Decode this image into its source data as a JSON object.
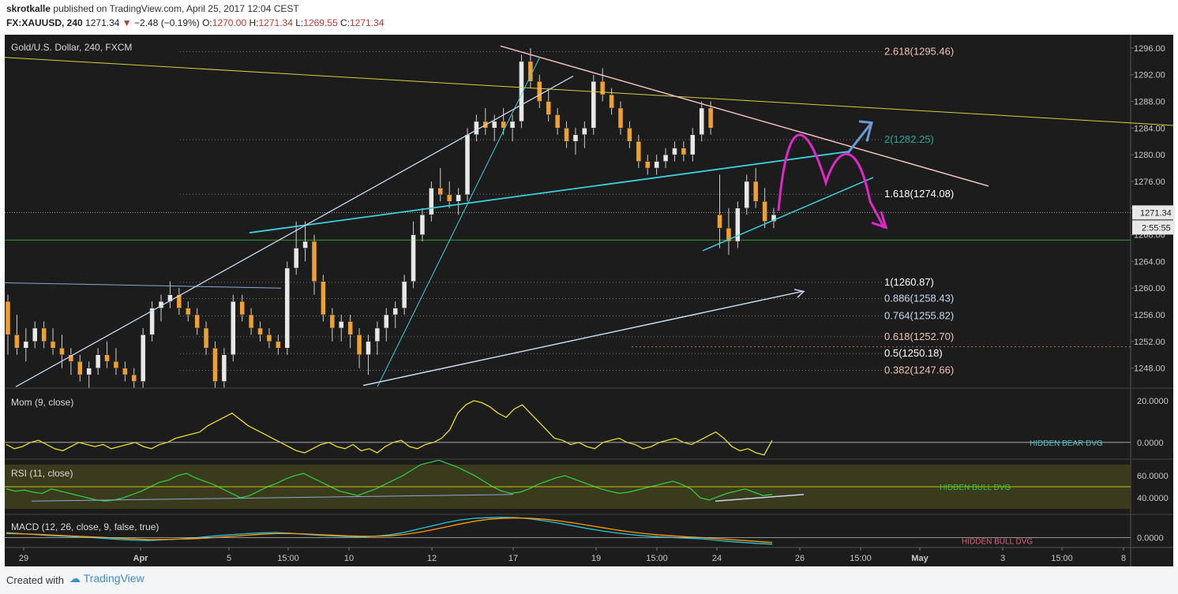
{
  "header": {
    "user": "skrotkalle",
    "published_text": "published on TradingView.com, April 25, 2017 12:04 CEST",
    "symbol_line": {
      "symbol": "FX:XAUUSD, 240",
      "last": "1271.34",
      "change": "−2.48 (−0.19%)",
      "open_label": "O:",
      "open": "1270.00",
      "high_label": "H:",
      "high": "1271.34",
      "low_label": "L:",
      "low": "1269.55",
      "close_label": "C:",
      "close": "1271.34"
    }
  },
  "footer": {
    "created_with": "Created with",
    "brand": "TradingView"
  },
  "chart_data": [
    {
      "type": "candlestick",
      "title": "Gold/U.S. Dollar, 240, FXCM",
      "ylim": [
        1245,
        1298
      ],
      "y_ticks": [
        "1296.00",
        "1292.00",
        "1288.00",
        "1284.00",
        "1280.00",
        "1276.00",
        "1272.00",
        "1268.00",
        "1264.00",
        "1260.00",
        "1256.00",
        "1252.00",
        "1248.00"
      ],
      "last_price_label": "1271.34",
      "countdown_label": "2:55:55",
      "x_tick_labels": [
        "29",
        "Apr",
        "5",
        "15:00",
        "10",
        "12",
        "17",
        "19",
        "15:00",
        "24",
        "26",
        "15:00",
        "May",
        "3",
        "15:00",
        "8"
      ],
      "fib_levels": [
        {
          "label": "2.618(1295.46)",
          "value": 1295.46,
          "color": "#f0c4b4"
        },
        {
          "label": "2(1282.25)",
          "value": 1282.25,
          "color": "#26a69a"
        },
        {
          "label": "1.618(1274.08)",
          "value": 1274.08,
          "color": "#ffffff"
        },
        {
          "label": "1(1260.87)",
          "value": 1260.87,
          "color": "#ffffff"
        },
        {
          "label": "0.886(1258.43)",
          "value": 1258.43,
          "color": "#c8d8f0"
        },
        {
          "label": "0.764(1255.82)",
          "value": 1255.82,
          "color": "#c8d8f0"
        },
        {
          "label": "0.618(1252.70)",
          "value": 1252.7,
          "color": "#f0c4b4"
        },
        {
          "label": "0.5(1250.18)",
          "value": 1250.18,
          "color": "#ffffff"
        },
        {
          "label": "0.382(1247.66)",
          "value": 1247.66,
          "color": "#f0c4b4"
        }
      ],
      "candles": [
        [
          1258,
          1259,
          1250,
          1253
        ],
        [
          1253,
          1256,
          1250,
          1251
        ],
        [
          1251,
          1254,
          1249,
          1252
        ],
        [
          1252,
          1255,
          1251,
          1254
        ],
        [
          1254,
          1255,
          1251,
          1252
        ],
        [
          1252,
          1254,
          1250,
          1251
        ],
        [
          1251,
          1253,
          1248,
          1250
        ],
        [
          1250,
          1251,
          1247,
          1249
        ],
        [
          1249,
          1250,
          1246,
          1247
        ],
        [
          1247,
          1249,
          1245,
          1248
        ],
        [
          1248,
          1251,
          1247,
          1250
        ],
        [
          1250,
          1252,
          1248,
          1249
        ],
        [
          1249,
          1251,
          1247,
          1248
        ],
        [
          1248,
          1249,
          1246,
          1247
        ],
        [
          1247,
          1248,
          1245,
          1246
        ],
        [
          1246,
          1254,
          1245,
          1253
        ],
        [
          1253,
          1258,
          1252,
          1257
        ],
        [
          1257,
          1259,
          1255,
          1258
        ],
        [
          1258,
          1261,
          1257,
          1259
        ],
        [
          1259,
          1260,
          1256,
          1257
        ],
        [
          1257,
          1258,
          1255,
          1256
        ],
        [
          1256,
          1257,
          1253,
          1254
        ],
        [
          1254,
          1255,
          1250,
          1251
        ],
        [
          1251,
          1252,
          1245,
          1246
        ],
        [
          1246,
          1251,
          1245,
          1250
        ],
        [
          1250,
          1259,
          1249,
          1258
        ],
        [
          1258,
          1259,
          1255,
          1256
        ],
        [
          1256,
          1257,
          1253,
          1254
        ],
        [
          1254,
          1255,
          1252,
          1253
        ],
        [
          1253,
          1254,
          1251,
          1252
        ],
        [
          1252,
          1253,
          1250,
          1251
        ],
        [
          1251,
          1264,
          1250,
          1263
        ],
        [
          1263,
          1270,
          1262,
          1266
        ],
        [
          1266,
          1270,
          1264,
          1267
        ],
        [
          1267,
          1268,
          1259,
          1261
        ],
        [
          1261,
          1262,
          1255,
          1256
        ],
        [
          1256,
          1257,
          1252,
          1254
        ],
        [
          1254,
          1256,
          1252,
          1255
        ],
        [
          1255,
          1256,
          1251,
          1253
        ],
        [
          1253,
          1254,
          1248,
          1250
        ],
        [
          1250,
          1253,
          1247,
          1252
        ],
        [
          1252,
          1255,
          1250,
          1254
        ],
        [
          1254,
          1257,
          1252,
          1256
        ],
        [
          1256,
          1258,
          1254,
          1257
        ],
        [
          1257,
          1262,
          1256,
          1261
        ],
        [
          1261,
          1270,
          1260,
          1268
        ],
        [
          1268,
          1272,
          1267,
          1271
        ],
        [
          1271,
          1276,
          1270,
          1275
        ],
        [
          1275,
          1278,
          1273,
          1274
        ],
        [
          1274,
          1276,
          1272,
          1273
        ],
        [
          1273,
          1275,
          1271,
          1274
        ],
        [
          1274,
          1284,
          1273,
          1283
        ],
        [
          1283,
          1286,
          1282,
          1285
        ],
        [
          1285,
          1287,
          1283,
          1284
        ],
        [
          1284,
          1286,
          1282,
          1285
        ],
        [
          1285,
          1287,
          1283,
          1284
        ],
        [
          1284,
          1286,
          1282,
          1285
        ],
        [
          1285,
          1295,
          1284,
          1294
        ],
        [
          1294,
          1296,
          1290,
          1291
        ],
        [
          1291,
          1292,
          1287,
          1288
        ],
        [
          1288,
          1290,
          1285,
          1286
        ],
        [
          1286,
          1287,
          1283,
          1284
        ],
        [
          1284,
          1285,
          1281,
          1282
        ],
        [
          1282,
          1284,
          1280,
          1283
        ],
        [
          1283,
          1285,
          1281,
          1284
        ],
        [
          1284,
          1292,
          1283,
          1291
        ],
        [
          1291,
          1293,
          1288,
          1289
        ],
        [
          1289,
          1290,
          1286,
          1287
        ],
        [
          1287,
          1288,
          1283,
          1284
        ],
        [
          1284,
          1285,
          1281,
          1282
        ],
        [
          1282,
          1283,
          1278,
          1279
        ],
        [
          1279,
          1280,
          1277,
          1278
        ],
        [
          1278,
          1280,
          1277,
          1279
        ],
        [
          1279,
          1281,
          1278,
          1280
        ],
        [
          1280,
          1282,
          1279,
          1281
        ],
        [
          1281,
          1282,
          1279,
          1280
        ],
        [
          1280,
          1284,
          1279,
          1283
        ],
        [
          1283,
          1288,
          1282,
          1287
        ],
        [
          1287,
          1288,
          1283,
          1284
        ],
        [
          1271,
          1277,
          1266,
          1269
        ],
        [
          1269,
          1272,
          1265,
          1267
        ],
        [
          1267,
          1273,
          1266,
          1272
        ],
        [
          1272,
          1277,
          1271,
          1276
        ],
        [
          1276,
          1278,
          1272,
          1273
        ],
        [
          1273,
          1275,
          1269,
          1270
        ],
        [
          1270,
          1272,
          1269,
          1271
        ]
      ]
    },
    {
      "type": "line",
      "title": "Mom (9, close)",
      "ylim": [
        -8,
        26
      ],
      "y_ticks": [
        "20.0000",
        "0.0000"
      ],
      "overlay_label": "HIDDEN BEAR DVG",
      "values": [
        -1,
        -3,
        -2,
        0,
        1,
        -1,
        -3,
        -4,
        -2,
        0,
        -1,
        -2,
        -1,
        -3,
        -2,
        -1,
        0,
        -2,
        -3,
        -1,
        0,
        2,
        3,
        4,
        5,
        8,
        10,
        12,
        14,
        11,
        8,
        6,
        4,
        2,
        0,
        -2,
        -4,
        -5,
        -3,
        -1,
        0,
        -2,
        -3,
        -1,
        -4,
        -3,
        -5,
        -2,
        0,
        1,
        -2,
        -3,
        -1,
        0,
        2,
        6,
        14,
        18,
        20,
        19,
        17,
        14,
        12,
        16,
        18,
        14,
        10,
        6,
        2,
        1,
        -1,
        0,
        -2,
        -3,
        0,
        1,
        2,
        0,
        -1,
        -3,
        -2,
        0,
        1,
        2,
        0,
        -1,
        1,
        3,
        5,
        2,
        -2,
        -4,
        -3,
        -5,
        -6,
        1
      ]
    },
    {
      "type": "line",
      "title": "RSI (11, close)",
      "ylim": [
        25,
        75
      ],
      "y_ticks": [
        "60.0000",
        "40.0000"
      ],
      "overlay_label": "HIDDEN BULL DVG",
      "values": [
        48,
        46,
        47,
        45,
        44,
        48,
        46,
        44,
        42,
        40,
        38,
        37,
        38,
        40,
        43,
        46,
        50,
        54,
        56,
        60,
        62,
        58,
        55,
        52,
        48,
        44,
        40,
        42,
        46,
        50,
        53,
        57,
        60,
        62,
        58,
        54,
        50,
        46,
        44,
        42,
        45,
        48,
        52,
        56,
        60,
        65,
        70,
        72,
        74,
        71,
        68,
        64,
        60,
        55,
        50,
        46,
        44,
        45,
        48,
        52,
        55,
        58,
        60,
        57,
        54,
        51,
        48,
        46,
        44,
        45,
        47,
        49,
        51,
        53,
        55,
        52,
        48,
        40,
        38,
        41,
        44,
        46,
        48,
        45,
        42,
        43
      ]
    },
    {
      "type": "line",
      "title": "MACD (12, 26, close, 9, false, true)",
      "ylim": [
        -3,
        7
      ],
      "y_ticks": [
        "0.0000"
      ],
      "overlay_label": "HIDDEN BULL DVG",
      "series": [
        {
          "name": "MACD",
          "color": "#26c6da",
          "values": [
            1.5,
            1.2,
            0.9,
            0.6,
            0.4,
            0.2,
            0.0,
            -0.3,
            -0.6,
            -0.8,
            -0.9,
            -0.7,
            -0.5,
            -0.2,
            0.2,
            0.6,
            0.9,
            1.2,
            1.4,
            1.5,
            1.3,
            1.0,
            0.7,
            0.5,
            0.3,
            0.2,
            0.4,
            0.8,
            1.5,
            2.5,
            3.5,
            4.5,
            5.3,
            5.8,
            6.0,
            6.1,
            6.0,
            5.6,
            5.0,
            4.3,
            3.5,
            2.7,
            2.0,
            1.4,
            0.9,
            0.5,
            0.2,
            0.0,
            -0.2,
            -0.4,
            -0.8,
            -1.2,
            -1.5,
            -1.8,
            -2.0
          ]
        },
        {
          "name": "Signal",
          "color": "#ff9800",
          "values": [
            1.2,
            1.1,
            1.0,
            0.8,
            0.6,
            0.4,
            0.2,
            0.0,
            -0.2,
            -0.4,
            -0.6,
            -0.6,
            -0.5,
            -0.4,
            -0.2,
            0.1,
            0.4,
            0.7,
            1.0,
            1.2,
            1.2,
            1.1,
            0.9,
            0.7,
            0.5,
            0.4,
            0.4,
            0.5,
            0.9,
            1.5,
            2.3,
            3.2,
            4.1,
            4.9,
            5.5,
            5.8,
            5.9,
            5.8,
            5.5,
            5.0,
            4.4,
            3.7,
            3.0,
            2.3,
            1.7,
            1.2,
            0.8,
            0.5,
            0.2,
            0.0,
            -0.3,
            -0.6,
            -0.9,
            -1.2,
            -1.5
          ]
        }
      ]
    }
  ]
}
